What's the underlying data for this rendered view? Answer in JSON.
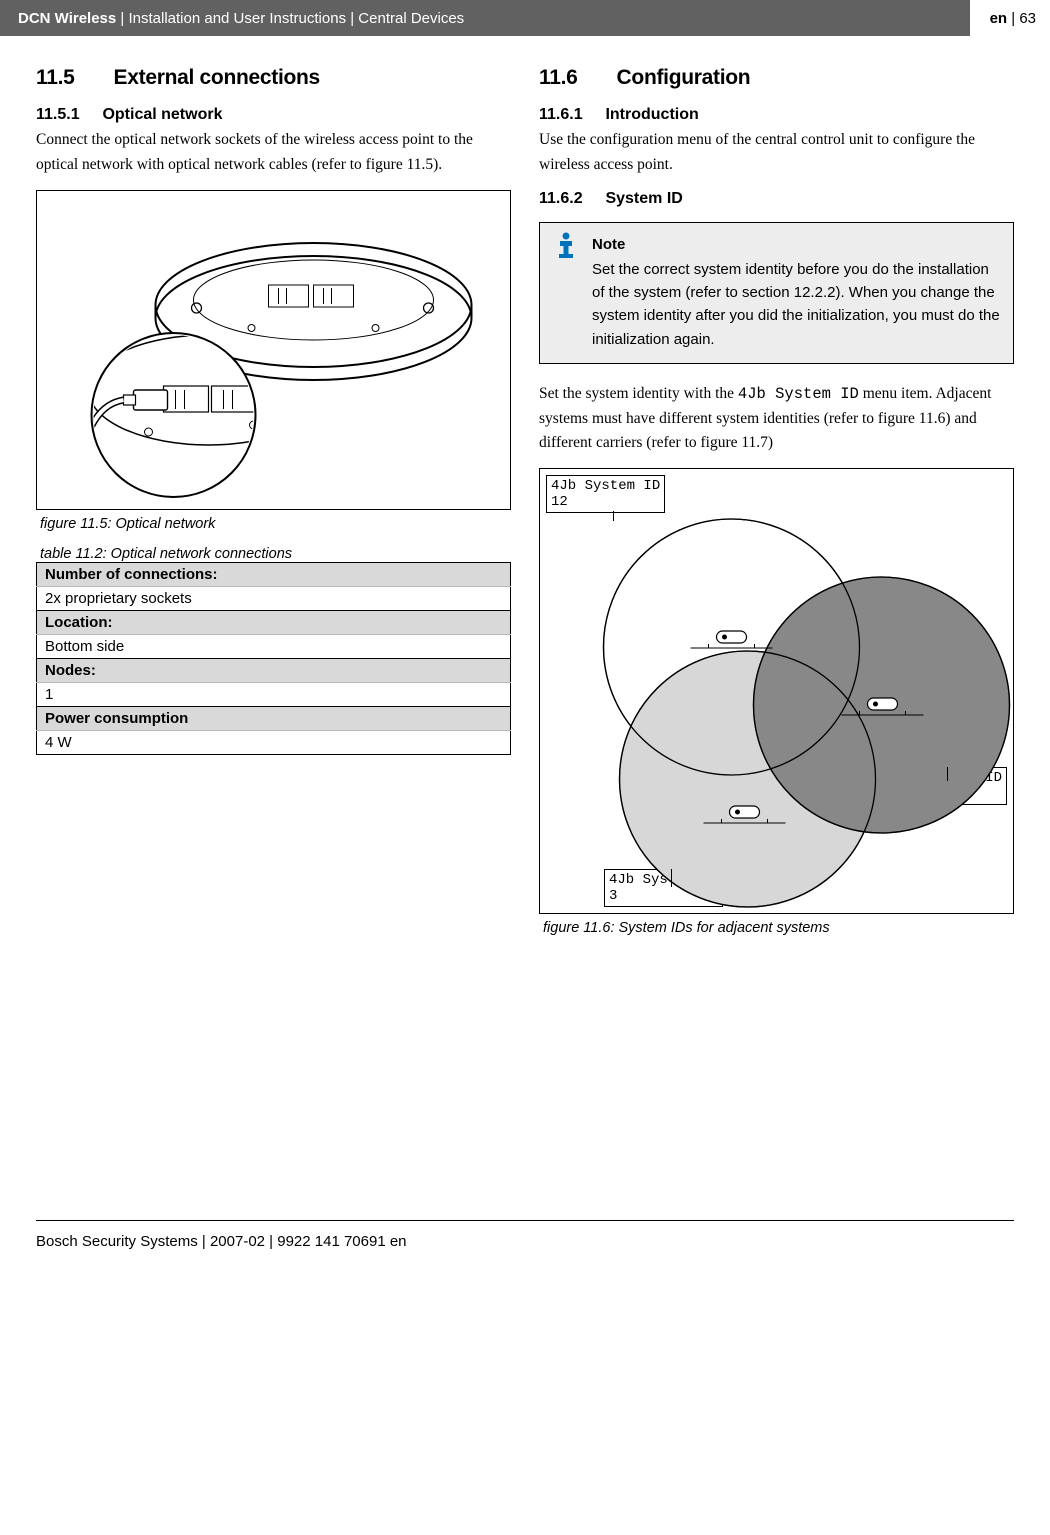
{
  "header": {
    "product": "DCN Wireless",
    "trail": "Installation and User Instructions | Central Devices",
    "lang": "en",
    "page": "63"
  },
  "left": {
    "sectionNum": "11.5",
    "sectionTitle": "External connections",
    "sub1Num": "11.5.1",
    "sub1Title": "Optical network",
    "sub1Body": "Connect the optical network sockets of the wireless access point to the optical network with optical network cables (refer to figure 11.5).",
    "fig1Caption": "figure 11.5: Optical network",
    "table": {
      "caption": "table 11.2: Optical network connections",
      "rows": [
        {
          "head": "Number of connections:"
        },
        {
          "val": "2x proprietary sockets"
        },
        {
          "head": "Location:"
        },
        {
          "val": "Bottom side"
        },
        {
          "head": "Nodes:"
        },
        {
          "val": "1"
        },
        {
          "head": "Power consumption"
        },
        {
          "val": "4 W"
        }
      ]
    }
  },
  "right": {
    "sectionNum": "11.6",
    "sectionTitle": "Configuration",
    "sub1Num": "11.6.1",
    "sub1Title": "Introduction",
    "sub1Body": "Use the configuration menu of the central control unit to configure the wireless access point.",
    "sub2Num": "11.6.2",
    "sub2Title": "System ID",
    "noteTitle": "Note",
    "noteBody": "Set the correct system identity before you do the installation of the system (refer to section 12.2.2). When you change the system identity after you did the initialization, you must do the initialization again.",
    "body2a": "Set the system identity with the ",
    "body2mono": "4Jb System ID",
    "body2b": " menu item. Adjacent systems must have different system identities (refer to figure 11.6) and different carriers (refer to figure 11.7)",
    "lcd1": "4Jb System ID\n12",
    "lcd2": "4Jb System ID\n8",
    "lcd3": "4Jb System ID\n3",
    "fig2Caption": "figure 11.6: System IDs for adjacent systems"
  },
  "footer": "Bosch Security Systems | 2007-02 | 9922 141 70691 en"
}
